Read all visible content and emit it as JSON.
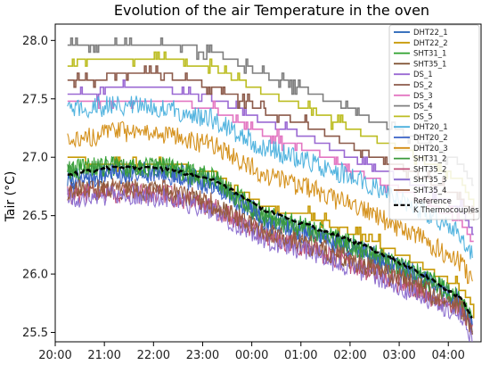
{
  "chart_data": {
    "type": "line",
    "title": "Evolution of the air Temperature in the oven",
    "xlabel": "",
    "ylabel": "Tair (°C)",
    "xlim": [
      "20:00",
      "04:40"
    ],
    "ylim": [
      25.42,
      28.14
    ],
    "x_ticks": [
      "20:00",
      "21:00",
      "22:00",
      "23:00",
      "00:00",
      "01:00",
      "02:00",
      "03:00",
      "04:00"
    ],
    "y_ticks": [
      "25.5",
      "26.0",
      "26.5",
      "27.0",
      "27.5",
      "28.0"
    ],
    "x_range": [
      "20:15",
      "04:30"
    ],
    "legend_position": "top-right",
    "series": [
      {
        "name": "DHT22_1",
        "color": "#1f5fb4",
        "style": "noisy",
        "values": [
          [
            0,
            26.8
          ],
          [
            60,
            26.88
          ],
          [
            120,
            26.88
          ],
          [
            180,
            26.78
          ],
          [
            240,
            26.48
          ],
          [
            300,
            26.35
          ],
          [
            360,
            26.2
          ],
          [
            420,
            26.02
          ],
          [
            480,
            25.78
          ],
          [
            495,
            25.55
          ]
        ]
      },
      {
        "name": "DHT22_2",
        "color": "#c89a06",
        "style": "step",
        "values": [
          [
            0,
            26.98
          ],
          [
            60,
            26.95
          ],
          [
            120,
            26.95
          ],
          [
            180,
            26.85
          ],
          [
            240,
            26.58
          ],
          [
            300,
            26.48
          ],
          [
            360,
            26.32
          ],
          [
            420,
            26.12
          ],
          [
            480,
            25.88
          ],
          [
            495,
            25.7
          ]
        ]
      },
      {
        "name": "SHT31_1",
        "color": "#2ca02c",
        "style": "noisy",
        "values": [
          [
            0,
            26.9
          ],
          [
            60,
            26.93
          ],
          [
            120,
            26.92
          ],
          [
            180,
            26.82
          ],
          [
            240,
            26.5
          ],
          [
            300,
            26.38
          ],
          [
            360,
            26.22
          ],
          [
            420,
            26.03
          ],
          [
            480,
            25.8
          ],
          [
            495,
            25.6
          ]
        ]
      },
      {
        "name": "SHT35_1",
        "color": "#7b4b2a",
        "style": "noisy",
        "values": [
          [
            0,
            26.7
          ],
          [
            60,
            26.72
          ],
          [
            120,
            26.7
          ],
          [
            180,
            26.58
          ],
          [
            240,
            26.35
          ],
          [
            300,
            26.22
          ],
          [
            360,
            26.08
          ],
          [
            420,
            25.9
          ],
          [
            480,
            25.7
          ],
          [
            495,
            25.5
          ]
        ]
      },
      {
        "name": "DS_1",
        "color": "#9b6ad3",
        "style": "step",
        "values": [
          [
            0,
            27.55
          ],
          [
            60,
            27.58
          ],
          [
            120,
            27.58
          ],
          [
            180,
            27.5
          ],
          [
            240,
            27.3
          ],
          [
            300,
            27.15
          ],
          [
            360,
            26.95
          ],
          [
            420,
            26.78
          ],
          [
            480,
            26.55
          ],
          [
            495,
            26.35
          ]
        ]
      },
      {
        "name": "DS_2",
        "color": "#8c5a4a",
        "style": "step",
        "values": [
          [
            0,
            27.65
          ],
          [
            60,
            27.7
          ],
          [
            120,
            27.7
          ],
          [
            180,
            27.6
          ],
          [
            240,
            27.4
          ],
          [
            300,
            27.25
          ],
          [
            360,
            27.05
          ],
          [
            420,
            26.88
          ],
          [
            480,
            26.65
          ],
          [
            495,
            26.48
          ]
        ]
      },
      {
        "name": "DS_3",
        "color": "#e377c2",
        "style": "step",
        "values": [
          [
            0,
            27.45
          ],
          [
            60,
            27.5
          ],
          [
            120,
            27.5
          ],
          [
            180,
            27.4
          ],
          [
            240,
            27.2
          ],
          [
            300,
            27.05
          ],
          [
            360,
            26.85
          ],
          [
            420,
            26.68
          ],
          [
            480,
            26.45
          ],
          [
            495,
            26.25
          ]
        ]
      },
      {
        "name": "DS_4",
        "color": "#7f7f7f",
        "style": "step",
        "values": [
          [
            0,
            27.95
          ],
          [
            60,
            27.98
          ],
          [
            120,
            27.98
          ],
          [
            180,
            27.9
          ],
          [
            240,
            27.7
          ],
          [
            300,
            27.55
          ],
          [
            360,
            27.35
          ],
          [
            420,
            27.18
          ],
          [
            480,
            26.95
          ],
          [
            495,
            26.75
          ]
        ]
      },
      {
        "name": "DS_5",
        "color": "#bcbd22",
        "style": "step",
        "values": [
          [
            0,
            27.8
          ],
          [
            60,
            27.85
          ],
          [
            120,
            27.85
          ],
          [
            180,
            27.75
          ],
          [
            240,
            27.55
          ],
          [
            300,
            27.4
          ],
          [
            360,
            27.2
          ],
          [
            420,
            27.03
          ],
          [
            480,
            26.8
          ],
          [
            495,
            26.6
          ]
        ]
      },
      {
        "name": "DHT20_1",
        "color": "#4ab0dd",
        "style": "noisy",
        "values": [
          [
            0,
            27.4
          ],
          [
            60,
            27.45
          ],
          [
            120,
            27.42
          ],
          [
            180,
            27.32
          ],
          [
            240,
            27.08
          ],
          [
            300,
            26.95
          ],
          [
            360,
            26.8
          ],
          [
            420,
            26.6
          ],
          [
            480,
            26.35
          ],
          [
            495,
            26.15
          ]
        ]
      },
      {
        "name": "DHT20_2",
        "color": "#3a62c7",
        "style": "noisy",
        "values": [
          [
            0,
            26.8
          ],
          [
            60,
            26.85
          ],
          [
            120,
            26.85
          ],
          [
            180,
            26.75
          ],
          [
            240,
            26.45
          ],
          [
            300,
            26.33
          ],
          [
            360,
            26.18
          ],
          [
            420,
            26.0
          ],
          [
            480,
            25.75
          ],
          [
            495,
            25.55
          ]
        ]
      },
      {
        "name": "DHT20_3",
        "color": "#d38c12",
        "style": "noisy",
        "values": [
          [
            0,
            27.15
          ],
          [
            60,
            27.22
          ],
          [
            120,
            27.2
          ],
          [
            180,
            27.1
          ],
          [
            240,
            26.85
          ],
          [
            300,
            26.72
          ],
          [
            360,
            26.55
          ],
          [
            420,
            26.35
          ],
          [
            480,
            26.1
          ],
          [
            495,
            25.9
          ]
        ]
      },
      {
        "name": "SHT31_2",
        "color": "#3a9a3a",
        "style": "noisy",
        "values": [
          [
            0,
            26.88
          ],
          [
            60,
            26.92
          ],
          [
            120,
            26.9
          ],
          [
            180,
            26.8
          ],
          [
            240,
            26.48
          ],
          [
            300,
            26.36
          ],
          [
            360,
            26.2
          ],
          [
            420,
            26.02
          ],
          [
            480,
            25.78
          ],
          [
            495,
            25.58
          ]
        ]
      },
      {
        "name": "SHT35_2",
        "color": "#c0507a",
        "style": "noisy",
        "values": [
          [
            0,
            26.68
          ],
          [
            60,
            26.7
          ],
          [
            120,
            26.68
          ],
          [
            180,
            26.56
          ],
          [
            240,
            26.32
          ],
          [
            300,
            26.2
          ],
          [
            360,
            26.05
          ],
          [
            420,
            25.88
          ],
          [
            480,
            25.68
          ],
          [
            495,
            25.48
          ]
        ]
      },
      {
        "name": "SHT35_3",
        "color": "#8a6ccf",
        "style": "noisy",
        "values": [
          [
            0,
            26.65
          ],
          [
            60,
            26.68
          ],
          [
            120,
            26.66
          ],
          [
            180,
            26.54
          ],
          [
            240,
            26.3
          ],
          [
            300,
            26.18
          ],
          [
            360,
            26.02
          ],
          [
            420,
            25.85
          ],
          [
            480,
            25.65
          ],
          [
            495,
            25.45
          ]
        ]
      },
      {
        "name": "SHT35_4",
        "color": "#9a5a3c",
        "style": "noisy",
        "values": [
          [
            0,
            26.72
          ],
          [
            60,
            26.74
          ],
          [
            120,
            26.72
          ],
          [
            180,
            26.6
          ],
          [
            240,
            26.37
          ],
          [
            300,
            26.24
          ],
          [
            360,
            26.09
          ],
          [
            420,
            25.92
          ],
          [
            480,
            25.72
          ],
          [
            495,
            25.52
          ]
        ]
      },
      {
        "name": "Reference\nK Thermocouples",
        "color": "#000000",
        "style": "dashed",
        "values": [
          [
            0,
            26.85
          ],
          [
            60,
            26.92
          ],
          [
            120,
            26.9
          ],
          [
            180,
            26.8
          ],
          [
            240,
            26.55
          ],
          [
            300,
            26.4
          ],
          [
            360,
            26.25
          ],
          [
            420,
            26.05
          ],
          [
            480,
            25.8
          ],
          [
            495,
            25.6
          ]
        ]
      }
    ]
  }
}
